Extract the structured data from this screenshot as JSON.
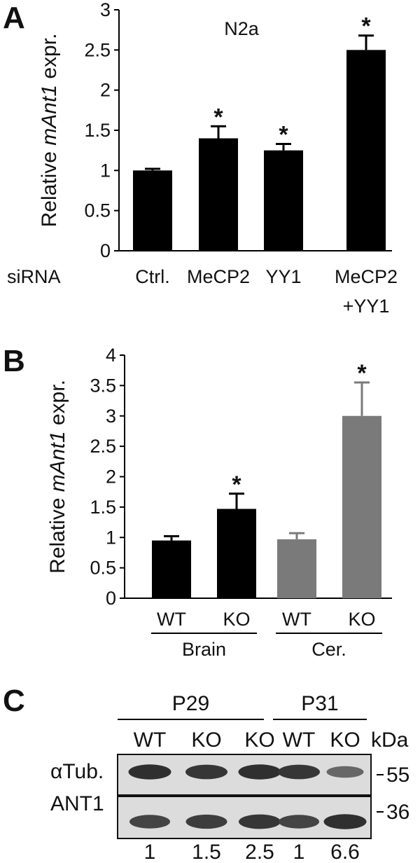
{
  "panels": {
    "A": {
      "letter": "A",
      "chart_data": {
        "type": "bar",
        "title": "N2a",
        "ylabel_prefix": "Relative ",
        "ylabel_gene": "mAnt1",
        "ylabel_suffix": " expr.",
        "row_label": "siRNA",
        "categories": [
          "Ctrl.",
          "MeCP2",
          "YY1",
          "MeCP2"
        ],
        "category_second_line": [
          "",
          "",
          "",
          "+YY1"
        ],
        "values": [
          1.0,
          1.4,
          1.25,
          2.5
        ],
        "errors": [
          0.02,
          0.15,
          0.08,
          0.18
        ],
        "significant": [
          false,
          true,
          true,
          true
        ],
        "star_text": "*",
        "ylim": [
          0,
          3
        ],
        "yticks": [
          "0",
          "0.5",
          "1",
          "1.5",
          "2",
          "2.5",
          "3"
        ],
        "colors": [
          "#000000",
          "#000000",
          "#000000",
          "#000000"
        ]
      }
    },
    "B": {
      "letter": "B",
      "chart_data": {
        "type": "bar",
        "ylabel_prefix": "Relative ",
        "ylabel_gene": "mAnt1",
        "ylabel_suffix": " expr.",
        "categories": [
          "WT",
          "KO",
          "WT",
          "KO"
        ],
        "groups": [
          "Brain",
          "Cer."
        ],
        "values": [
          0.95,
          1.47,
          0.97,
          3.0
        ],
        "errors": [
          0.07,
          0.25,
          0.1,
          0.55
        ],
        "significant": [
          false,
          true,
          false,
          true
        ],
        "star_text": "*",
        "ylim": [
          0,
          4
        ],
        "yticks": [
          "0",
          "0.5",
          "1",
          "1.5",
          "2",
          "2.5",
          "3",
          "3.5",
          "4"
        ],
        "colors": [
          "#000000",
          "#000000",
          "#7a7a7a",
          "#7a7a7a"
        ]
      }
    },
    "C": {
      "letter": "C",
      "groups": [
        "P29",
        "P31"
      ],
      "lanes": [
        "WT",
        "KO",
        "KO",
        "WT",
        "KO"
      ],
      "unit": "kDa",
      "rows": [
        {
          "label": "αTub.",
          "marker": "55",
          "intensities": [
            0.95,
            0.9,
            0.95,
            0.9,
            0.55
          ]
        },
        {
          "label": "ANT1",
          "marker": "36",
          "intensities": [
            0.8,
            0.85,
            0.9,
            0.8,
            0.95
          ]
        }
      ],
      "quantification": [
        "1",
        "1.5",
        "2.5",
        "1",
        "6.6"
      ]
    }
  }
}
